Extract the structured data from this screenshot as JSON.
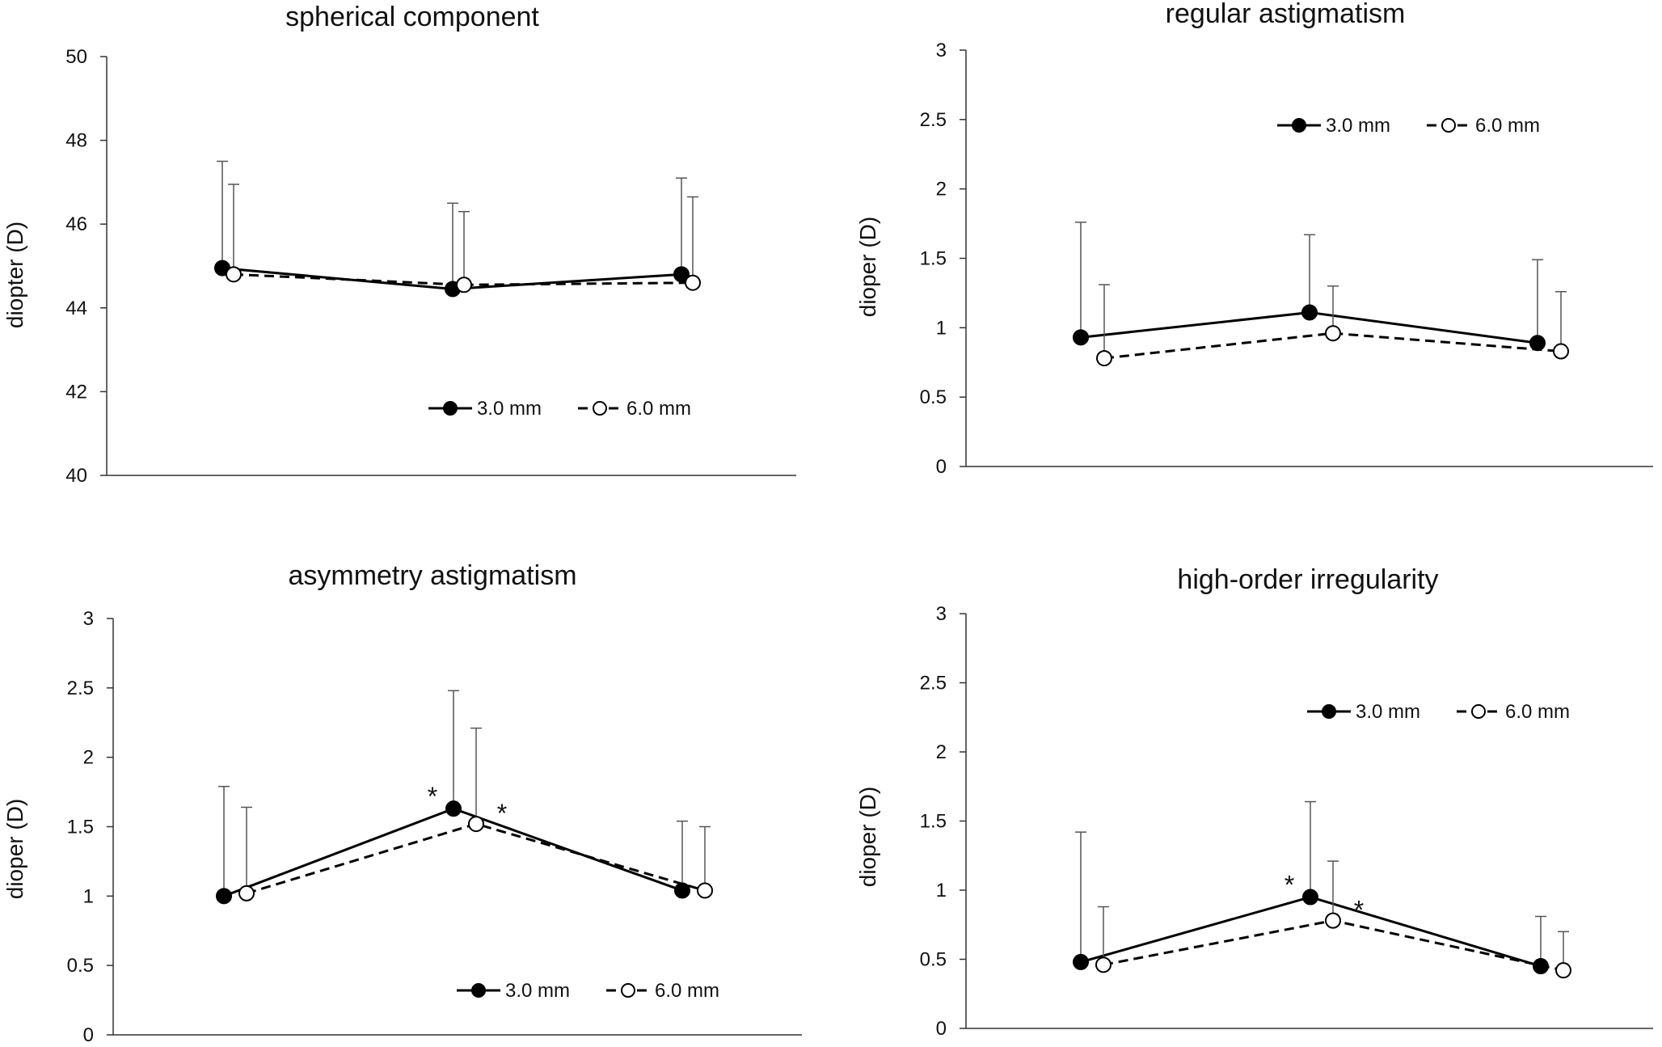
{
  "chart_data": [
    {
      "type": "line",
      "title": "spherical component",
      "ylabel": "diopter (D)",
      "xlabel": "",
      "ylim": [
        40,
        50
      ],
      "yticks": [
        "40",
        "42",
        "44",
        "46",
        "48",
        "50"
      ],
      "series": [
        {
          "name": "3.0 mm",
          "values": [
            44.95,
            44.45,
            44.8
          ],
          "error": [
            2.55,
            2.05,
            2.3
          ],
          "marker": "filled",
          "line": "solid"
        },
        {
          "name": "6.0 mm",
          "values": [
            44.8,
            44.55,
            44.6
          ],
          "error": [
            2.15,
            1.75,
            2.05
          ],
          "marker": "open",
          "line": "dashed"
        }
      ],
      "annotations": []
    },
    {
      "type": "line",
      "title": "regular astigmatism",
      "ylabel": "dioper (D)",
      "xlabel": "",
      "ylim": [
        0,
        3
      ],
      "yticks": [
        "0",
        "0.5",
        "1",
        "1.5",
        "2",
        "2.5",
        "3"
      ],
      "series": [
        {
          "name": "3.0 mm",
          "values": [
            0.93,
            1.11,
            0.89
          ],
          "error": [
            0.83,
            0.56,
            0.6
          ],
          "marker": "filled",
          "line": "solid"
        },
        {
          "name": "6.0 mm",
          "values": [
            0.78,
            0.96,
            0.83
          ],
          "error": [
            0.53,
            0.34,
            0.43
          ],
          "marker": "open",
          "line": "dashed"
        }
      ],
      "annotations": []
    },
    {
      "type": "line",
      "title": "asymmetry astigmatism",
      "ylabel": "dioper (D)",
      "xlabel": "",
      "ylim": [
        0,
        3
      ],
      "yticks": [
        "0",
        "0.5",
        "1",
        "1.5",
        "2",
        "2.5",
        "3"
      ],
      "series": [
        {
          "name": "3.0 mm",
          "values": [
            1.0,
            1.63,
            1.04
          ],
          "error": [
            0.79,
            0.85,
            0.5
          ],
          "marker": "filled",
          "line": "solid"
        },
        {
          "name": "6.0 mm",
          "values": [
            1.02,
            1.52,
            1.04
          ],
          "error": [
            0.62,
            0.69,
            0.46
          ],
          "marker": "open",
          "line": "dashed"
        }
      ],
      "annotations": [
        {
          "text": "*",
          "series": 0,
          "point": 1
        },
        {
          "text": "*",
          "series": 1,
          "point": 1
        }
      ]
    },
    {
      "type": "line",
      "title": "high-order irregularity",
      "ylabel": "dioper (D)",
      "xlabel": "",
      "ylim": [
        0,
        3
      ],
      "yticks": [
        "0",
        "0.5",
        "1",
        "1.5",
        "2",
        "2.5",
        "3"
      ],
      "series": [
        {
          "name": "3.0 mm",
          "values": [
            0.48,
            0.95,
            0.45
          ],
          "error": [
            0.94,
            0.69,
            0.36
          ],
          "marker": "filled",
          "line": "solid"
        },
        {
          "name": "6.0 mm",
          "values": [
            0.46,
            0.78,
            0.42
          ],
          "error": [
            0.42,
            0.43,
            0.28
          ],
          "marker": "open",
          "line": "dashed"
        }
      ],
      "annotations": [
        {
          "text": "*",
          "series": 0,
          "point": 1
        },
        {
          "text": "*",
          "series": 1,
          "point": 1
        }
      ]
    }
  ]
}
